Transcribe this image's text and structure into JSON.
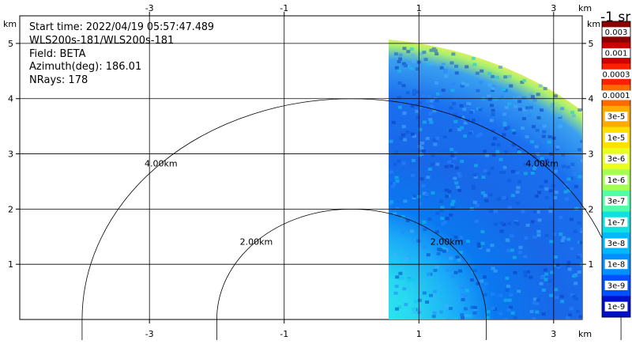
{
  "info": {
    "start_time": "Start time: 2022/04/19 05:57:47.489",
    "instrument": "WLS200s-181/WLS200s-181",
    "field": "Field: BETA",
    "azimuth": "Azimuth(deg): 186.01",
    "nrays": "NRays: 178"
  },
  "colorbar": {
    "title": "-1 sr",
    "labels": [
      "0.003",
      "0.001",
      "0.0003",
      "0.0001",
      "3e-5",
      "1e-5",
      "3e-6",
      "1e-6",
      "3e-7",
      "1e-7",
      "3e-8",
      "1e-8",
      "3e-9",
      "1e-9"
    ],
    "colors": [
      "#8b0000",
      "#cc0000",
      "#ff2000",
      "#ff6a00",
      "#ffaa00",
      "#ffe000",
      "#e8ff20",
      "#a6ff50",
      "#50ffa6",
      "#10e0e0",
      "#00b8ff",
      "#0090ff",
      "#0050ff",
      "#0010c8"
    ]
  },
  "chart_data": {
    "type": "heatmap",
    "x_unit": "km",
    "y_unit": "km",
    "xlim": [
      -4.1,
      4.25
    ],
    "ylim": [
      0,
      5.5
    ],
    "x_ticks": [
      -3,
      -1,
      1,
      3
    ],
    "y_ticks": [
      1,
      2,
      3,
      4,
      5
    ],
    "x_tick_labels": [
      "-3",
      "-1",
      "1",
      "3"
    ],
    "y_tick_labels": [
      "1",
      "2",
      "3",
      "4",
      "5"
    ],
    "axis_unit_label": "km",
    "grid": true,
    "range_rings_km": [
      2,
      4
    ],
    "range_ring_labels": [
      "2.00km",
      "4.00km"
    ],
    "sector": {
      "x_min": 0.55,
      "max_range": 5.1
    }
  }
}
